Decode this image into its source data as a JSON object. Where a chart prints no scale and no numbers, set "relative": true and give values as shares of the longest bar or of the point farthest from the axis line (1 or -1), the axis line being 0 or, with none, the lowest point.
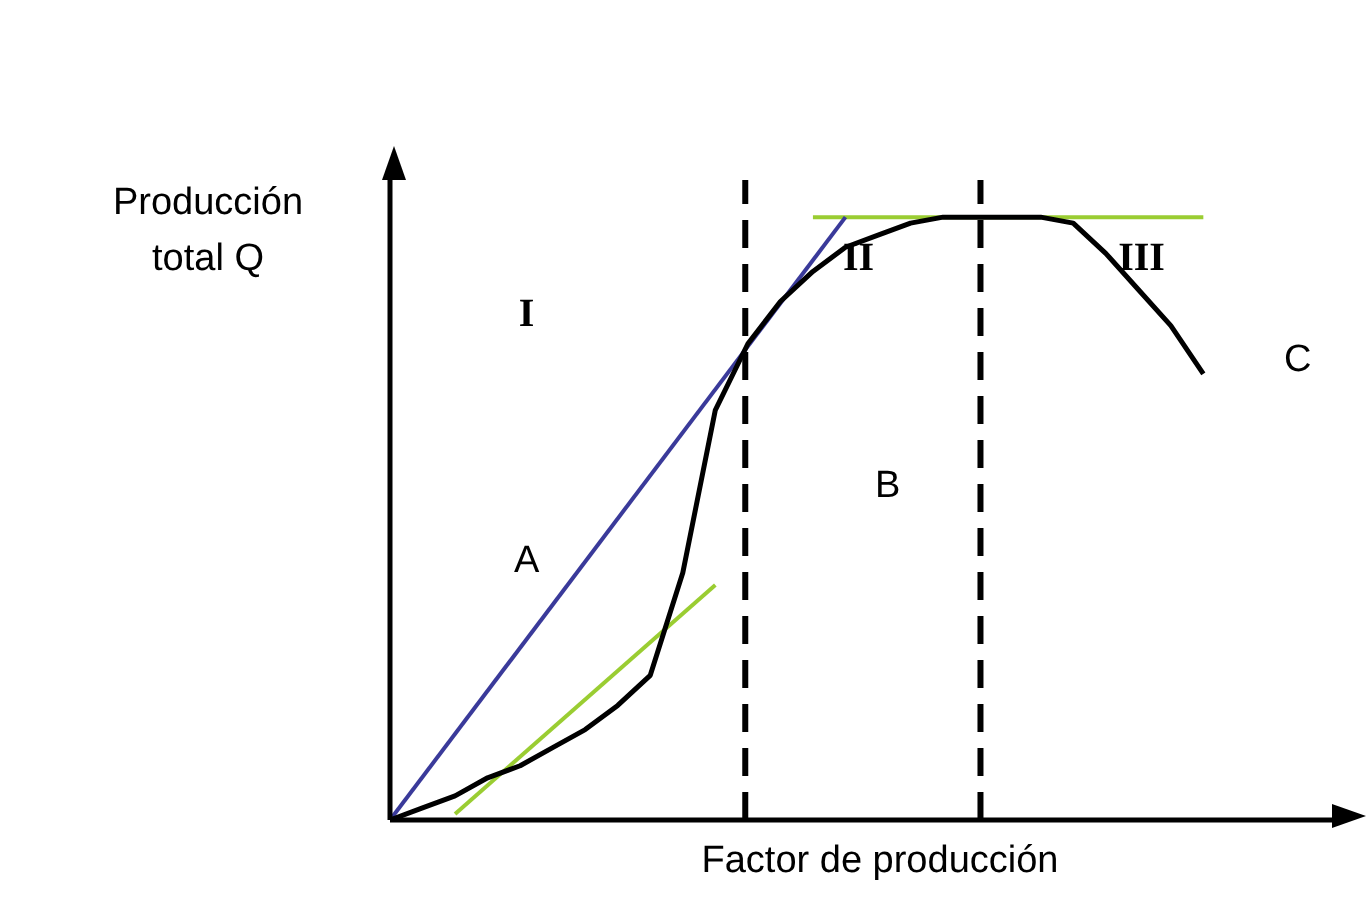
{
  "chart_data": {
    "type": "line",
    "relative": true,
    "xlabel": "Factor de producción",
    "ylabel": "Producción total Q",
    "categories": [
      null,
      null,
      null,
      null,
      null,
      null,
      null,
      null,
      null,
      null,
      null,
      null,
      null,
      null,
      null,
      null,
      null,
      null,
      null,
      null,
      null,
      null,
      null,
      null,
      null,
      null,
      null,
      null,
      null,
      null,
      null
    ],
    "series": [
      {
        "color": "#000000",
        "values": [
          0,
          0.02,
          0.04,
          0.07,
          0.09,
          0.12,
          0.15,
          0.19,
          0.24,
          0.41,
          0.68,
          0.79,
          0.86,
          0.91,
          0.95,
          0.97,
          0.99,
          1,
          1,
          1,
          1,
          0.99,
          0.94,
          0.88,
          0.82,
          0.74,
          null,
          null,
          null,
          null,
          null
        ]
      },
      {
        "color": "#3a3a9a",
        "values": [
          0,
          null,
          null,
          null,
          null,
          null,
          null,
          null,
          null,
          null,
          null,
          null,
          null,
          null,
          1,
          null,
          null,
          null,
          null,
          null,
          null,
          null,
          null,
          null,
          null,
          null,
          null,
          null,
          null,
          null,
          null
        ]
      },
      {
        "color": "#9acd32",
        "values": [
          null,
          null,
          0.01,
          null,
          null,
          null,
          null,
          null,
          null,
          null,
          0.39,
          null,
          null,
          null,
          null,
          null,
          null,
          null,
          null,
          null,
          null,
          null,
          null,
          null,
          null,
          null,
          null,
          null,
          null,
          null,
          null
        ]
      },
      {
        "color": "#9acd32",
        "values": [
          null,
          null,
          null,
          null,
          null,
          null,
          null,
          null,
          null,
          null,
          null,
          null,
          null,
          1,
          null,
          null,
          null,
          null,
          null,
          null,
          null,
          null,
          null,
          null,
          null,
          1,
          null,
          null,
          null,
          null,
          null
        ]
      }
    ],
    "annotations": [
      "I",
      "II",
      "III",
      "A",
      "B",
      "C"
    ],
    "marker": "none",
    "line_style": "solid",
    "legend": false
  }
}
